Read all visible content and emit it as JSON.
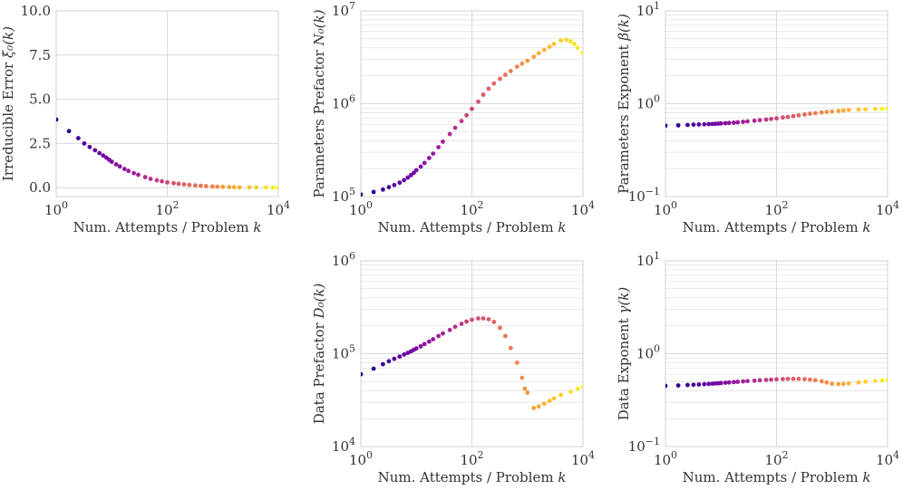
{
  "chart_data": [
    {
      "id": "irreducible",
      "type": "scatter",
      "xscale": "log",
      "yscale": "linear",
      "xlabel": "Num. Attempts / Problem k",
      "ylabel": "Irreducible Error ξ₀(k)",
      "xlim": [
        1,
        10000
      ],
      "ylim": [
        -0.5,
        10
      ],
      "xticks": [
        1,
        100,
        10000
      ],
      "xtick_labels": [
        {
          "base": "10",
          "exp": "0"
        },
        {
          "base": "10",
          "exp": "2"
        },
        {
          "base": "10",
          "exp": "4"
        }
      ],
      "yticks": [
        0,
        2.5,
        5,
        7.5,
        10
      ],
      "ytick_labels": [
        "0.0",
        "2.5",
        "5.0",
        "7.5",
        "10.0"
      ],
      "points": [
        [
          1,
          3.85
        ],
        [
          1.7,
          3.2
        ],
        [
          2.5,
          2.8
        ],
        [
          3.2,
          2.5
        ],
        [
          4,
          2.3
        ],
        [
          5,
          2.12
        ],
        [
          6,
          1.96
        ],
        [
          7,
          1.82
        ],
        [
          8,
          1.7
        ],
        [
          9,
          1.58
        ],
        [
          10,
          1.47
        ],
        [
          12,
          1.32
        ],
        [
          14,
          1.2
        ],
        [
          17,
          1.06
        ],
        [
          20,
          0.95
        ],
        [
          25,
          0.82
        ],
        [
          30,
          0.73
        ],
        [
          40,
          0.6
        ],
        [
          50,
          0.5
        ],
        [
          65,
          0.42
        ],
        [
          80,
          0.36
        ],
        [
          100,
          0.3
        ],
        [
          130,
          0.25
        ],
        [
          160,
          0.22
        ],
        [
          200,
          0.19
        ],
        [
          250,
          0.16
        ],
        [
          320,
          0.13
        ],
        [
          400,
          0.11
        ],
        [
          500,
          0.09
        ],
        [
          650,
          0.07
        ],
        [
          800,
          0.06
        ],
        [
          1000,
          0.05
        ],
        [
          1300,
          0.04
        ],
        [
          1600,
          0.03
        ],
        [
          2000,
          0.02
        ],
        [
          3000,
          0.02
        ],
        [
          4000,
          0.02
        ],
        [
          6000,
          0.01
        ],
        [
          8000,
          0.01
        ],
        [
          10000,
          0.01
        ]
      ]
    },
    {
      "id": "params_prefactor",
      "type": "scatter",
      "xscale": "log",
      "yscale": "log",
      "xlabel": "Num. Attempts / Problem k",
      "ylabel": "Parameters Prefactor N₀(k)",
      "xlim": [
        1,
        10000
      ],
      "ylim": [
        100000,
        10000000
      ],
      "xticks": [
        1,
        100,
        10000
      ],
      "xtick_labels": [
        {
          "base": "10",
          "exp": "0"
        },
        {
          "base": "10",
          "exp": "2"
        },
        {
          "base": "10",
          "exp": "4"
        }
      ],
      "yticks": [
        100000,
        1000000,
        10000000
      ],
      "ytick_labels": [
        {
          "base": "10",
          "exp": "5"
        },
        {
          "base": "10",
          "exp": "6"
        },
        {
          "base": "10",
          "exp": "7"
        }
      ],
      "points": [
        [
          1,
          105000
        ],
        [
          1.7,
          112000
        ],
        [
          2.5,
          119000
        ],
        [
          3.2,
          126000
        ],
        [
          4,
          133000
        ],
        [
          5,
          141000
        ],
        [
          6,
          150000
        ],
        [
          7,
          160000
        ],
        [
          8,
          170000
        ],
        [
          9,
          180000
        ],
        [
          10,
          192000
        ],
        [
          12,
          210000
        ],
        [
          14,
          230000
        ],
        [
          17,
          260000
        ],
        [
          20,
          290000
        ],
        [
          25,
          340000
        ],
        [
          30,
          390000
        ],
        [
          40,
          470000
        ],
        [
          50,
          550000
        ],
        [
          65,
          650000
        ],
        [
          80,
          750000
        ],
        [
          100,
          880000
        ],
        [
          130,
          1050000
        ],
        [
          160,
          1250000
        ],
        [
          200,
          1450000
        ],
        [
          250,
          1650000
        ],
        [
          320,
          1850000
        ],
        [
          400,
          2050000
        ],
        [
          500,
          2250000
        ],
        [
          650,
          2500000
        ],
        [
          800,
          2700000
        ],
        [
          1000,
          2900000
        ],
        [
          1300,
          3200000
        ],
        [
          1600,
          3500000
        ],
        [
          2000,
          3800000
        ],
        [
          2500,
          4100000
        ],
        [
          3000,
          4400000
        ],
        [
          4000,
          4800000
        ],
        [
          5000,
          4900000
        ],
        [
          6000,
          4700000
        ],
        [
          7000,
          4400000
        ],
        [
          8000,
          4000000
        ],
        [
          10000,
          3500000
        ]
      ]
    },
    {
      "id": "params_exponent",
      "type": "scatter",
      "xscale": "log",
      "yscale": "log",
      "xlabel": "Num. Attempts / Problem k",
      "ylabel": "Parameters Exponent β(k)",
      "xlim": [
        1,
        10000
      ],
      "ylim": [
        0.1,
        10
      ],
      "xticks": [
        1,
        100,
        10000
      ],
      "xtick_labels": [
        {
          "base": "10",
          "exp": "0"
        },
        {
          "base": "10",
          "exp": "2"
        },
        {
          "base": "10",
          "exp": "4"
        }
      ],
      "yticks": [
        0.1,
        1,
        10
      ],
      "ytick_labels": [
        {
          "base": "10",
          "exp": "−1"
        },
        {
          "base": "10",
          "exp": "0"
        },
        {
          "base": "10",
          "exp": "1"
        }
      ],
      "points": [
        [
          1,
          0.58
        ],
        [
          1.7,
          0.585
        ],
        [
          2.5,
          0.59
        ],
        [
          3.2,
          0.595
        ],
        [
          4,
          0.598
        ],
        [
          5,
          0.6
        ],
        [
          6,
          0.603
        ],
        [
          7,
          0.605
        ],
        [
          8,
          0.608
        ],
        [
          9,
          0.61
        ],
        [
          10,
          0.613
        ],
        [
          12,
          0.617
        ],
        [
          14,
          0.62
        ],
        [
          17,
          0.625
        ],
        [
          20,
          0.63
        ],
        [
          25,
          0.638
        ],
        [
          30,
          0.645
        ],
        [
          40,
          0.655
        ],
        [
          50,
          0.665
        ],
        [
          65,
          0.675
        ],
        [
          80,
          0.685
        ],
        [
          100,
          0.695
        ],
        [
          130,
          0.71
        ],
        [
          160,
          0.72
        ],
        [
          200,
          0.735
        ],
        [
          250,
          0.75
        ],
        [
          320,
          0.765
        ],
        [
          400,
          0.78
        ],
        [
          500,
          0.79
        ],
        [
          650,
          0.805
        ],
        [
          800,
          0.815
        ],
        [
          1000,
          0.825
        ],
        [
          1300,
          0.835
        ],
        [
          1600,
          0.845
        ],
        [
          2000,
          0.855
        ],
        [
          3000,
          0.865
        ],
        [
          4000,
          0.87
        ],
        [
          6000,
          0.875
        ],
        [
          8000,
          0.88
        ],
        [
          10000,
          0.88
        ]
      ]
    },
    {
      "id": "data_prefactor",
      "type": "scatter",
      "xscale": "log",
      "yscale": "log",
      "xlabel": "Num. Attempts / Problem k",
      "ylabel": "Data Prefactor D₀(k)",
      "xlim": [
        1,
        10000
      ],
      "ylim": [
        10000,
        1000000
      ],
      "xticks": [
        1,
        100,
        10000
      ],
      "xtick_labels": [
        {
          "base": "10",
          "exp": "0"
        },
        {
          "base": "10",
          "exp": "2"
        },
        {
          "base": "10",
          "exp": "4"
        }
      ],
      "yticks": [
        10000,
        100000,
        1000000
      ],
      "ytick_labels": [
        {
          "base": "10",
          "exp": "4"
        },
        {
          "base": "10",
          "exp": "5"
        },
        {
          "base": "10",
          "exp": "6"
        }
      ],
      "points": [
        [
          1,
          60000
        ],
        [
          1.7,
          69000
        ],
        [
          2.5,
          77000
        ],
        [
          3.2,
          83000
        ],
        [
          4,
          88000
        ],
        [
          5,
          93000
        ],
        [
          6,
          98000
        ],
        [
          7,
          102000
        ],
        [
          8,
          106000
        ],
        [
          9,
          110000
        ],
        [
          10,
          114000
        ],
        [
          12,
          120000
        ],
        [
          14,
          127000
        ],
        [
          17,
          135000
        ],
        [
          20,
          143000
        ],
        [
          25,
          155000
        ],
        [
          30,
          165000
        ],
        [
          40,
          180000
        ],
        [
          50,
          195000
        ],
        [
          65,
          210000
        ],
        [
          80,
          222000
        ],
        [
          100,
          232000
        ],
        [
          130,
          240000
        ],
        [
          160,
          240000
        ],
        [
          200,
          235000
        ],
        [
          250,
          220000
        ],
        [
          320,
          190000
        ],
        [
          400,
          155000
        ],
        [
          500,
          115000
        ],
        [
          650,
          80000
        ],
        [
          800,
          55000
        ],
        [
          900,
          42000
        ],
        [
          1000,
          38000
        ],
        [
          1300,
          26000
        ],
        [
          1600,
          27000
        ],
        [
          2000,
          29000
        ],
        [
          2500,
          31000
        ],
        [
          3000,
          33000
        ],
        [
          4000,
          36000
        ],
        [
          6000,
          39000
        ],
        [
          8000,
          42000
        ],
        [
          10000,
          44000
        ]
      ]
    },
    {
      "id": "data_exponent",
      "type": "scatter",
      "xscale": "log",
      "yscale": "log",
      "xlabel": "Num. Attempts / Problem k",
      "ylabel": "Data Exponent γ(k)",
      "xlim": [
        1,
        10000
      ],
      "ylim": [
        0.1,
        10
      ],
      "xticks": [
        1,
        100,
        10000
      ],
      "xtick_labels": [
        {
          "base": "10",
          "exp": "0"
        },
        {
          "base": "10",
          "exp": "2"
        },
        {
          "base": "10",
          "exp": "4"
        }
      ],
      "yticks": [
        0.1,
        1,
        10
      ],
      "ytick_labels": [
        {
          "base": "10",
          "exp": "−1"
        },
        {
          "base": "10",
          "exp": "0"
        },
        {
          "base": "10",
          "exp": "1"
        }
      ],
      "points": [
        [
          1,
          0.45
        ],
        [
          1.7,
          0.455
        ],
        [
          2.5,
          0.46
        ],
        [
          3.2,
          0.463
        ],
        [
          4,
          0.466
        ],
        [
          5,
          0.469
        ],
        [
          6,
          0.472
        ],
        [
          7,
          0.475
        ],
        [
          8,
          0.478
        ],
        [
          9,
          0.48
        ],
        [
          10,
          0.483
        ],
        [
          12,
          0.487
        ],
        [
          14,
          0.49
        ],
        [
          17,
          0.494
        ],
        [
          20,
          0.498
        ],
        [
          25,
          0.503
        ],
        [
          30,
          0.507
        ],
        [
          40,
          0.512
        ],
        [
          50,
          0.517
        ],
        [
          65,
          0.522
        ],
        [
          80,
          0.526
        ],
        [
          100,
          0.53
        ],
        [
          130,
          0.533
        ],
        [
          160,
          0.535
        ],
        [
          200,
          0.536
        ],
        [
          250,
          0.535
        ],
        [
          320,
          0.532
        ],
        [
          400,
          0.527
        ],
        [
          500,
          0.518
        ],
        [
          650,
          0.505
        ],
        [
          800,
          0.49
        ],
        [
          1000,
          0.475
        ],
        [
          1300,
          0.47
        ],
        [
          1600,
          0.472
        ],
        [
          2000,
          0.478
        ],
        [
          3000,
          0.49
        ],
        [
          4000,
          0.5
        ],
        [
          6000,
          0.51
        ],
        [
          8000,
          0.515
        ],
        [
          10000,
          0.52
        ]
      ]
    }
  ],
  "colors": {
    "palette": [
      "#0d0887",
      "#5c01a6",
      "#9c179e",
      "#cc4778",
      "#ed7953",
      "#fdb42f",
      "#f0f921"
    ],
    "grid": "#d9d9d9",
    "text": "#333333"
  }
}
